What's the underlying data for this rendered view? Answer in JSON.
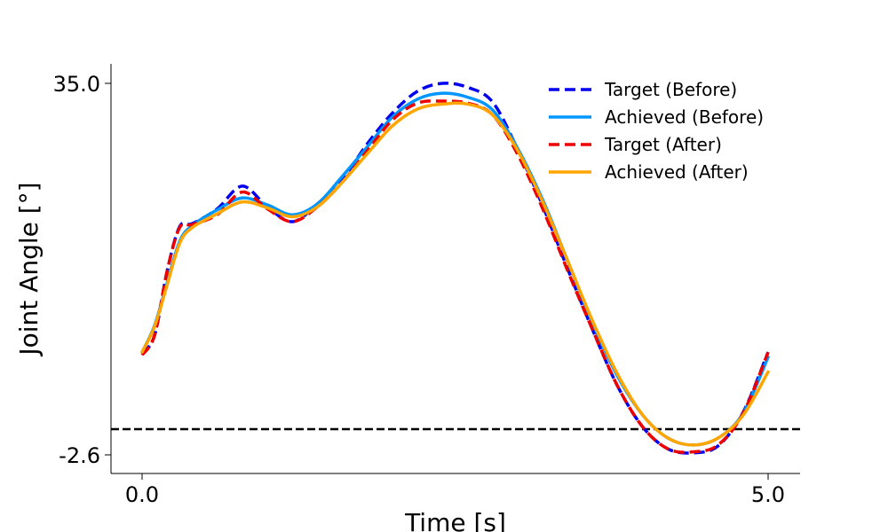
{
  "chart_data": {
    "type": "line",
    "xlabel": "Time [s]",
    "ylabel": "Joint Angle [°]",
    "xlim": [
      0.0,
      5.0
    ],
    "ylim": [
      -2.6,
      35.0
    ],
    "xticks": [
      "0.0",
      "5.0"
    ],
    "yticks": [
      "35.0",
      "-2.6"
    ],
    "reference_line": {
      "y": 0.0,
      "style": "dashed",
      "color": "#000000"
    },
    "grid": false,
    "legend_position": "top-right",
    "series": [
      {
        "name": "Target (Before)",
        "style": "dashed",
        "color": "#0000ee",
        "x": [
          0.0,
          0.1,
          0.2,
          0.3,
          0.4,
          0.6,
          0.8,
          1.0,
          1.2,
          1.4,
          1.6,
          1.8,
          2.0,
          2.2,
          2.4,
          2.6,
          2.8,
          3.0,
          3.2,
          3.4,
          3.6,
          3.8,
          4.0,
          4.2,
          4.4,
          4.6,
          4.8,
          5.0
        ],
        "y": [
          7.7,
          9.5,
          16.0,
          20.5,
          20.8,
          22.3,
          24.6,
          22.5,
          21.0,
          22.8,
          25.3,
          28.9,
          32.0,
          34.2,
          35.0,
          34.6,
          33.1,
          28.3,
          22.6,
          16.2,
          10.0,
          4.3,
          0.2,
          -2.0,
          -2.4,
          -1.7,
          1.7,
          7.8
        ]
      },
      {
        "name": "Achieved (Before)",
        "style": "solid",
        "color": "#0096ff",
        "x": [
          0.0,
          0.1,
          0.2,
          0.3,
          0.4,
          0.6,
          0.8,
          1.0,
          1.2,
          1.4,
          1.6,
          1.8,
          2.0,
          2.2,
          2.4,
          2.6,
          2.8,
          3.0,
          3.2,
          3.4,
          3.6,
          3.8,
          4.0,
          4.2,
          4.4,
          4.6,
          4.8,
          5.0
        ],
        "y": [
          7.8,
          10.5,
          14.8,
          19.0,
          20.6,
          22.2,
          23.4,
          22.7,
          21.7,
          22.8,
          25.6,
          28.6,
          31.6,
          33.4,
          34.0,
          33.6,
          32.3,
          28.4,
          23.2,
          17.0,
          10.7,
          5.3,
          1.4,
          -0.9,
          -1.6,
          -0.9,
          1.6,
          7.3
        ]
      },
      {
        "name": "Target (After)",
        "style": "dashed",
        "color": "#ee0000",
        "x": [
          0.0,
          0.1,
          0.2,
          0.3,
          0.4,
          0.6,
          0.8,
          1.0,
          1.2,
          1.4,
          1.6,
          1.8,
          2.0,
          2.2,
          2.4,
          2.6,
          2.8,
          3.0,
          3.2,
          3.4,
          3.6,
          3.8,
          4.0,
          4.2,
          4.4,
          4.6,
          4.8,
          5.0
        ],
        "y": [
          7.5,
          9.5,
          16.0,
          20.4,
          20.7,
          21.7,
          24.0,
          22.3,
          21.0,
          22.5,
          25.0,
          28.2,
          31.3,
          33.0,
          33.2,
          33.0,
          31.8,
          27.8,
          22.3,
          16.0,
          10.0,
          4.3,
          0.2,
          -2.0,
          -2.3,
          -1.6,
          1.6,
          7.8
        ]
      },
      {
        "name": "Achieved (After)",
        "style": "solid",
        "color": "#ffa500",
        "x": [
          0.0,
          0.1,
          0.2,
          0.3,
          0.4,
          0.6,
          0.8,
          1.0,
          1.2,
          1.4,
          1.6,
          1.8,
          2.0,
          2.2,
          2.4,
          2.6,
          2.8,
          3.0,
          3.2,
          3.4,
          3.6,
          3.8,
          4.0,
          4.2,
          4.4,
          4.6,
          4.8,
          5.0
        ],
        "y": [
          7.8,
          10.4,
          14.6,
          18.8,
          20.4,
          21.8,
          23.0,
          22.4,
          21.5,
          22.5,
          25.0,
          27.9,
          30.7,
          32.4,
          32.9,
          32.9,
          31.8,
          28.2,
          23.0,
          17.0,
          10.9,
          5.5,
          1.4,
          -0.9,
          -1.6,
          -0.9,
          1.4,
          5.8
        ]
      }
    ]
  }
}
